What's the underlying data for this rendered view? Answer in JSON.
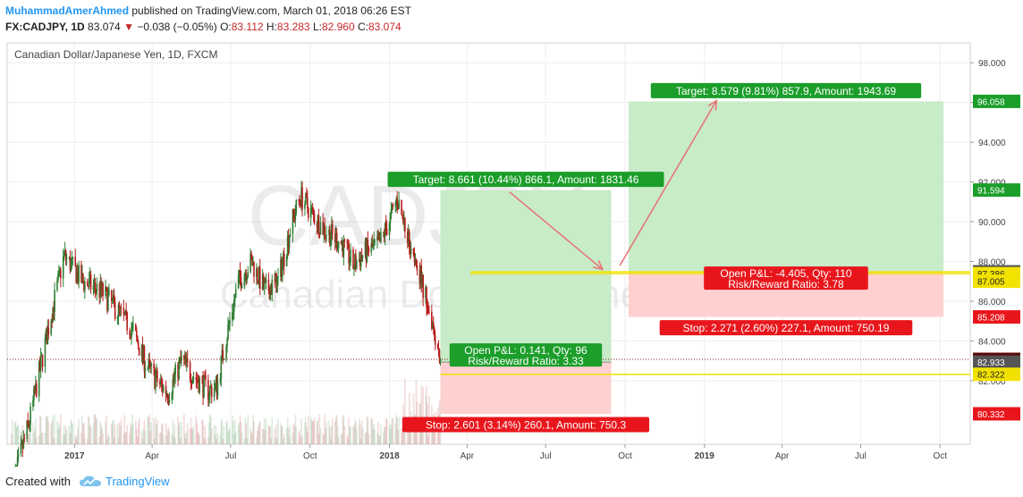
{
  "header": {
    "author": "MuhammadAmerAhmed",
    "published_text": " published on TradingView.com, March 01, 2018 06:26 EST",
    "symbol": "FX:CADJPY, 1D",
    "last": "83.074",
    "change_arrow": "▼",
    "change": "−0.038 (−0.05%)",
    "open_label": "O:",
    "open": "83.112",
    "high_label": "H:",
    "high": "83.283",
    "low_label": "L:",
    "low": "82.960",
    "close_label": "C:",
    "close": "83.074"
  },
  "footer": {
    "created_with": "Created with",
    "brand": "TradingView"
  },
  "chart_data": {
    "type": "candlestick",
    "title": "Canadian Dollar/Japanese Yen, 1D, FXCM",
    "watermark_symbol": "CADJPY, 1D",
    "watermark_name": "Canadian Dollar/Japanese Yen",
    "x_ticks": [
      {
        "label": "2017",
        "t": "2017-01-01",
        "bold": true
      },
      {
        "label": "Apr",
        "t": "2017-04-01"
      },
      {
        "label": "Jul",
        "t": "2017-07-01"
      },
      {
        "label": "Oct",
        "t": "2017-10-01"
      },
      {
        "label": "2018",
        "t": "2018-01-01",
        "bold": true
      },
      {
        "label": "Apr",
        "t": "2018-04-01"
      },
      {
        "label": "Jul",
        "t": "2018-07-01"
      },
      {
        "label": "Oct",
        "t": "2018-10-01"
      },
      {
        "label": "2019",
        "t": "2019-01-01",
        "bold": true
      },
      {
        "label": "Apr",
        "t": "2019-04-01"
      },
      {
        "label": "Jul",
        "t": "2019-07-01"
      },
      {
        "label": "Oct",
        "t": "2019-10-01"
      }
    ],
    "x_range": [
      "2016-10-15",
      "2019-11-05"
    ],
    "y_range": [
      78.8,
      99.0
    ],
    "y_ticks": [
      "98.000",
      "96.000",
      "94.000",
      "92.000",
      "90.000",
      "88.000",
      "86.000",
      "84.000",
      "82.000"
    ],
    "price_path": [
      [
        "2016-10-20",
        76.5
      ],
      [
        "2016-11-10",
        80.0
      ],
      [
        "2016-12-01",
        84.5
      ],
      [
        "2016-12-20",
        88.3
      ],
      [
        "2017-01-10",
        87.0
      ],
      [
        "2017-02-01",
        86.5
      ],
      [
        "2017-02-20",
        85.5
      ],
      [
        "2017-03-10",
        84.5
      ],
      [
        "2017-03-25",
        82.8
      ],
      [
        "2017-04-10",
        81.8
      ],
      [
        "2017-04-20",
        81.4
      ],
      [
        "2017-05-05",
        83.0
      ],
      [
        "2017-05-20",
        82.2
      ],
      [
        "2017-06-05",
        81.5
      ],
      [
        "2017-06-15",
        81.7
      ],
      [
        "2017-06-25",
        84.0
      ],
      [
        "2017-07-10",
        87.0
      ],
      [
        "2017-07-25",
        88.0
      ],
      [
        "2017-08-10",
        86.5
      ],
      [
        "2017-08-25",
        87.0
      ],
      [
        "2017-09-10",
        90.0
      ],
      [
        "2017-09-20",
        91.3
      ],
      [
        "2017-10-05",
        90.3
      ],
      [
        "2017-10-20",
        89.5
      ],
      [
        "2017-11-05",
        89.0
      ],
      [
        "2017-11-20",
        87.8
      ],
      [
        "2017-12-05",
        88.5
      ],
      [
        "2017-12-20",
        88.8
      ],
      [
        "2018-01-05",
        90.5
      ],
      [
        "2018-01-10",
        91.2
      ],
      [
        "2018-01-20",
        89.5
      ],
      [
        "2018-02-01",
        88.2
      ],
      [
        "2018-02-10",
        86.5
      ],
      [
        "2018-02-20",
        85.0
      ],
      [
        "2018-03-01",
        83.07
      ]
    ],
    "last_price": 83.074,
    "position_1": {
      "x_start": "2018-03-01",
      "x_end": "2018-09-15",
      "entry": 82.933,
      "target": 91.594,
      "stop": 80.332,
      "target_label": "Target: 8.661 (10.44%) 866.1, Amount: 1831.46",
      "stop_label": "Stop: 2.601 (3.14%) 260.1, Amount: 750.3",
      "pnl_label": "Open P&L: 0.141, Qty: 96",
      "rr_label": "Risk/Reward Ratio: 3.33"
    },
    "position_2": {
      "x_start": "2018-10-05",
      "x_end": "2019-10-05",
      "entry": 87.479,
      "target": 96.058,
      "stop": 85.208,
      "target_label": "Target: 8.579 (9.81%) 857.9, Amount: 1943.69",
      "stop_label": "Stop: 2.271 (2.60%) 227.1, Amount: 750.19",
      "pnl_label": "Open P&L: -4.405, Qty: 110",
      "rr_label": "Risk/Reward Ratio: 3.78"
    },
    "yellow_lines": [
      {
        "y": 82.322,
        "x_start": "2018-03-01"
      },
      {
        "y": 87.386,
        "x_start": "2018-04-05"
      },
      {
        "y": 87.479,
        "x_start": "2018-04-05"
      }
    ],
    "arrows": [
      {
        "from": [
          "2018-05-20",
          91.5
        ],
        "to": [
          "2018-09-05",
          87.6
        ]
      },
      {
        "from": [
          "2018-09-25",
          87.8
        ],
        "to": [
          "2019-01-15",
          96.1
        ]
      }
    ],
    "axis_price_labels": [
      {
        "value": 96.058,
        "text": "96.058",
        "color": "#1b9e2a"
      },
      {
        "value": 91.594,
        "text": "91.594",
        "color": "#1b9e2a"
      },
      {
        "value": 87.479,
        "text": "87.479",
        "color": "#555555"
      },
      {
        "value": 87.386,
        "text": "87.386",
        "color": "#f2e200",
        "text_color": "#222222"
      },
      {
        "value": 87.005,
        "text": "87.005",
        "color": "#f2e200",
        "text_color": "#222222"
      },
      {
        "value": 85.208,
        "text": "85.208",
        "color": "#e8161c"
      },
      {
        "value": 83.074,
        "text": "83.074",
        "color": "#5a0a0a"
      },
      {
        "value": 82.933,
        "text": "82.933",
        "color": "#555555"
      },
      {
        "value": 82.322,
        "text": "82.322",
        "color": "#f2e200",
        "text_color": "#222222"
      },
      {
        "value": 80.332,
        "text": "80.332",
        "color": "#e8161c"
      }
    ],
    "colors": {
      "up": "#2e7d32",
      "down": "#b71c1c",
      "profit_zone": "#c8ebc8",
      "loss_zone": "#ffd0d0",
      "label_green": "#1b9e2a",
      "label_red": "#e8161c",
      "yellow": "#f2e200",
      "arrow": "#e57373",
      "grid": "#eeeeee",
      "last_price_line": "#8b1a1a"
    }
  }
}
